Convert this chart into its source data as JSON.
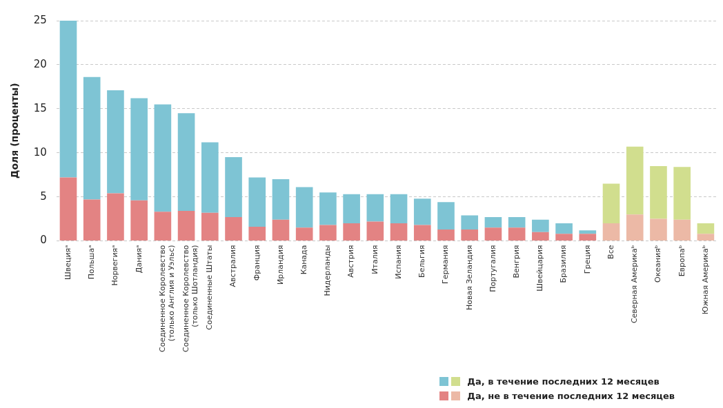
{
  "chart_data": {
    "type": "bar",
    "stacked": true,
    "ylabel": "Доля (проценты)",
    "categories": [
      "Швецияᵃ",
      "Польшаᵃ",
      "Норвегияᵃ",
      "Данияᵃ",
      "Соединенное Королевство (только Англия и Уэльс)",
      "Соединенное Королевство (только Шотландия)",
      "Соединенные Штаты",
      "Австралия",
      "Франция",
      "Ирландия",
      "Канада",
      "Нидерланды",
      "Австрия",
      "Италия",
      "Испания",
      "Бельгия",
      "Германия",
      "Новая Зеландия",
      "Португалия",
      "Венгрия",
      "Швейцария",
      "Бразилия",
      "Греция",
      "Все",
      "Северная Америкаᵇ",
      "Океанияᵇ",
      "Европаᵇ",
      "Южная Америкаᵇ"
    ],
    "series": [
      {
        "name": "Да, не в течение последних 12 месяцев",
        "colors": [
          "#e38383",
          "#e38383",
          "#e38383",
          "#e38383",
          "#e38383",
          "#e38383",
          "#e38383",
          "#e38383",
          "#e38383",
          "#e38383",
          "#e38383",
          "#e38383",
          "#e38383",
          "#e38383",
          "#e38383",
          "#e38383",
          "#e38383",
          "#e38383",
          "#e38383",
          "#e38383",
          "#e38383",
          "#e38383",
          "#e38383",
          "#ecb9a6",
          "#ecb9a6",
          "#ecb9a6",
          "#ecb9a6",
          "#ecb9a6"
        ],
        "values": [
          7.2,
          4.7,
          5.4,
          4.6,
          3.3,
          3.4,
          3.2,
          2.7,
          1.6,
          2.4,
          1.5,
          1.8,
          2.0,
          2.2,
          2.0,
          1.8,
          1.3,
          1.3,
          1.5,
          1.5,
          1.0,
          0.8,
          0.8,
          2.0,
          3.0,
          2.5,
          2.4,
          0.8
        ]
      },
      {
        "name": "Да, в течение последних 12 месяцев",
        "colors": [
          "#7ec4d4",
          "#7ec4d4",
          "#7ec4d4",
          "#7ec4d4",
          "#7ec4d4",
          "#7ec4d4",
          "#7ec4d4",
          "#7ec4d4",
          "#7ec4d4",
          "#7ec4d4",
          "#7ec4d4",
          "#7ec4d4",
          "#7ec4d4",
          "#7ec4d4",
          "#7ec4d4",
          "#7ec4d4",
          "#7ec4d4",
          "#7ec4d4",
          "#7ec4d4",
          "#7ec4d4",
          "#7ec4d4",
          "#7ec4d4",
          "#7ec4d4",
          "#d1de8e",
          "#d1de8e",
          "#d1de8e",
          "#d1de8e",
          "#d1de8e"
        ],
        "values": [
          17.8,
          13.9,
          11.7,
          11.6,
          12.2,
          11.1,
          8.0,
          6.8,
          5.6,
          4.6,
          4.6,
          3.7,
          3.3,
          3.1,
          3.3,
          3.0,
          3.1,
          1.6,
          1.2,
          1.2,
          1.4,
          1.2,
          0.4,
          4.5,
          7.7,
          6.0,
          6.0,
          1.2
        ]
      }
    ],
    "ylim": [
      0,
      25
    ],
    "yticks": [
      0,
      5,
      10,
      15,
      20,
      25
    ],
    "grid": "y",
    "legend": "bottom right"
  }
}
